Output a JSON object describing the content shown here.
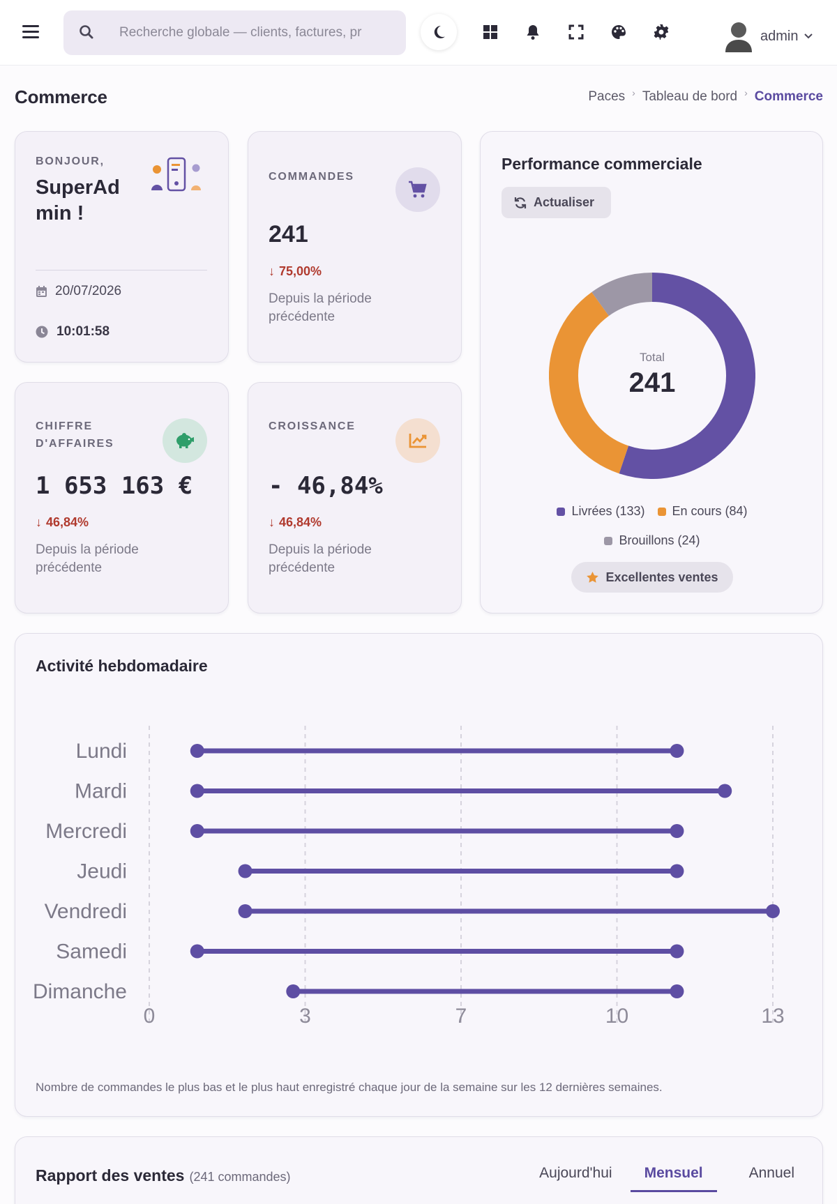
{
  "header": {
    "search_placeholder": "Recherche globale — clients, factures, pr",
    "user_name": "admin"
  },
  "page": {
    "title": "Commerce",
    "breadcrumb": [
      "Paces",
      "Tableau de bord",
      "Commerce"
    ]
  },
  "welcome": {
    "greeting": "BONJOUR,",
    "name": "SuperAd min !",
    "date": "20/07/2026",
    "time": "10:01:58"
  },
  "stats": {
    "orders": {
      "label": "COMMANDES",
      "value": "241",
      "trend": "75,00%",
      "note": "Depuis la période précédente"
    },
    "revenue": {
      "label": "CHIFFRE D'AFFAIRES",
      "value": "1 653 163 €",
      "trend": "46,84%",
      "note": "Depuis la période précédente"
    },
    "growth": {
      "label": "CROISSANCE",
      "value": "- 46,84%",
      "trend": "46,84%",
      "note": "Depuis la période précédente"
    }
  },
  "performance": {
    "title": "Performance commerciale",
    "refresh_label": "Actualiser",
    "total_label": "Total",
    "total_value": "241",
    "badge": "Excellentes ventes",
    "segments": [
      {
        "label": "Livrées (133)",
        "value": 133,
        "color": "#6351a4"
      },
      {
        "label": "En cours (84)",
        "value": 84,
        "color": "#ea9435"
      },
      {
        "label": "Brouillons (24)",
        "value": 24,
        "color": "#9d97a6"
      }
    ]
  },
  "weekly": {
    "title": "Activité hebdomadaire",
    "caption": "Nombre de commandes le plus bas et le plus haut enregistré chaque jour de la semaine sur les 12 dernières semaines."
  },
  "sales_report": {
    "title": "Rapport des ventes",
    "count": "(241 commandes)",
    "tabs": [
      "Aujourd'hui",
      "Mensuel",
      "Annuel"
    ]
  },
  "colors": {
    "accent": "#5a4aa0",
    "orange": "#ea9435",
    "down": "#b03a2e"
  },
  "chart_data": {
    "type": "dumbbell",
    "title": "Activité hebdomadaire",
    "categories": [
      "Lundi",
      "Mardi",
      "Mercredi",
      "Jeudi",
      "Vendredi",
      "Samedi",
      "Dimanche"
    ],
    "series": [
      {
        "name": "min",
        "values": [
          1,
          1,
          1,
          2,
          2,
          1,
          3
        ]
      },
      {
        "name": "max",
        "values": [
          11,
          12,
          11,
          11,
          13,
          11,
          11
        ]
      }
    ],
    "xticks": [
      "0",
      "3",
      "7",
      "10",
      "13"
    ],
    "xlim": [
      0,
      13
    ],
    "grid": true
  }
}
